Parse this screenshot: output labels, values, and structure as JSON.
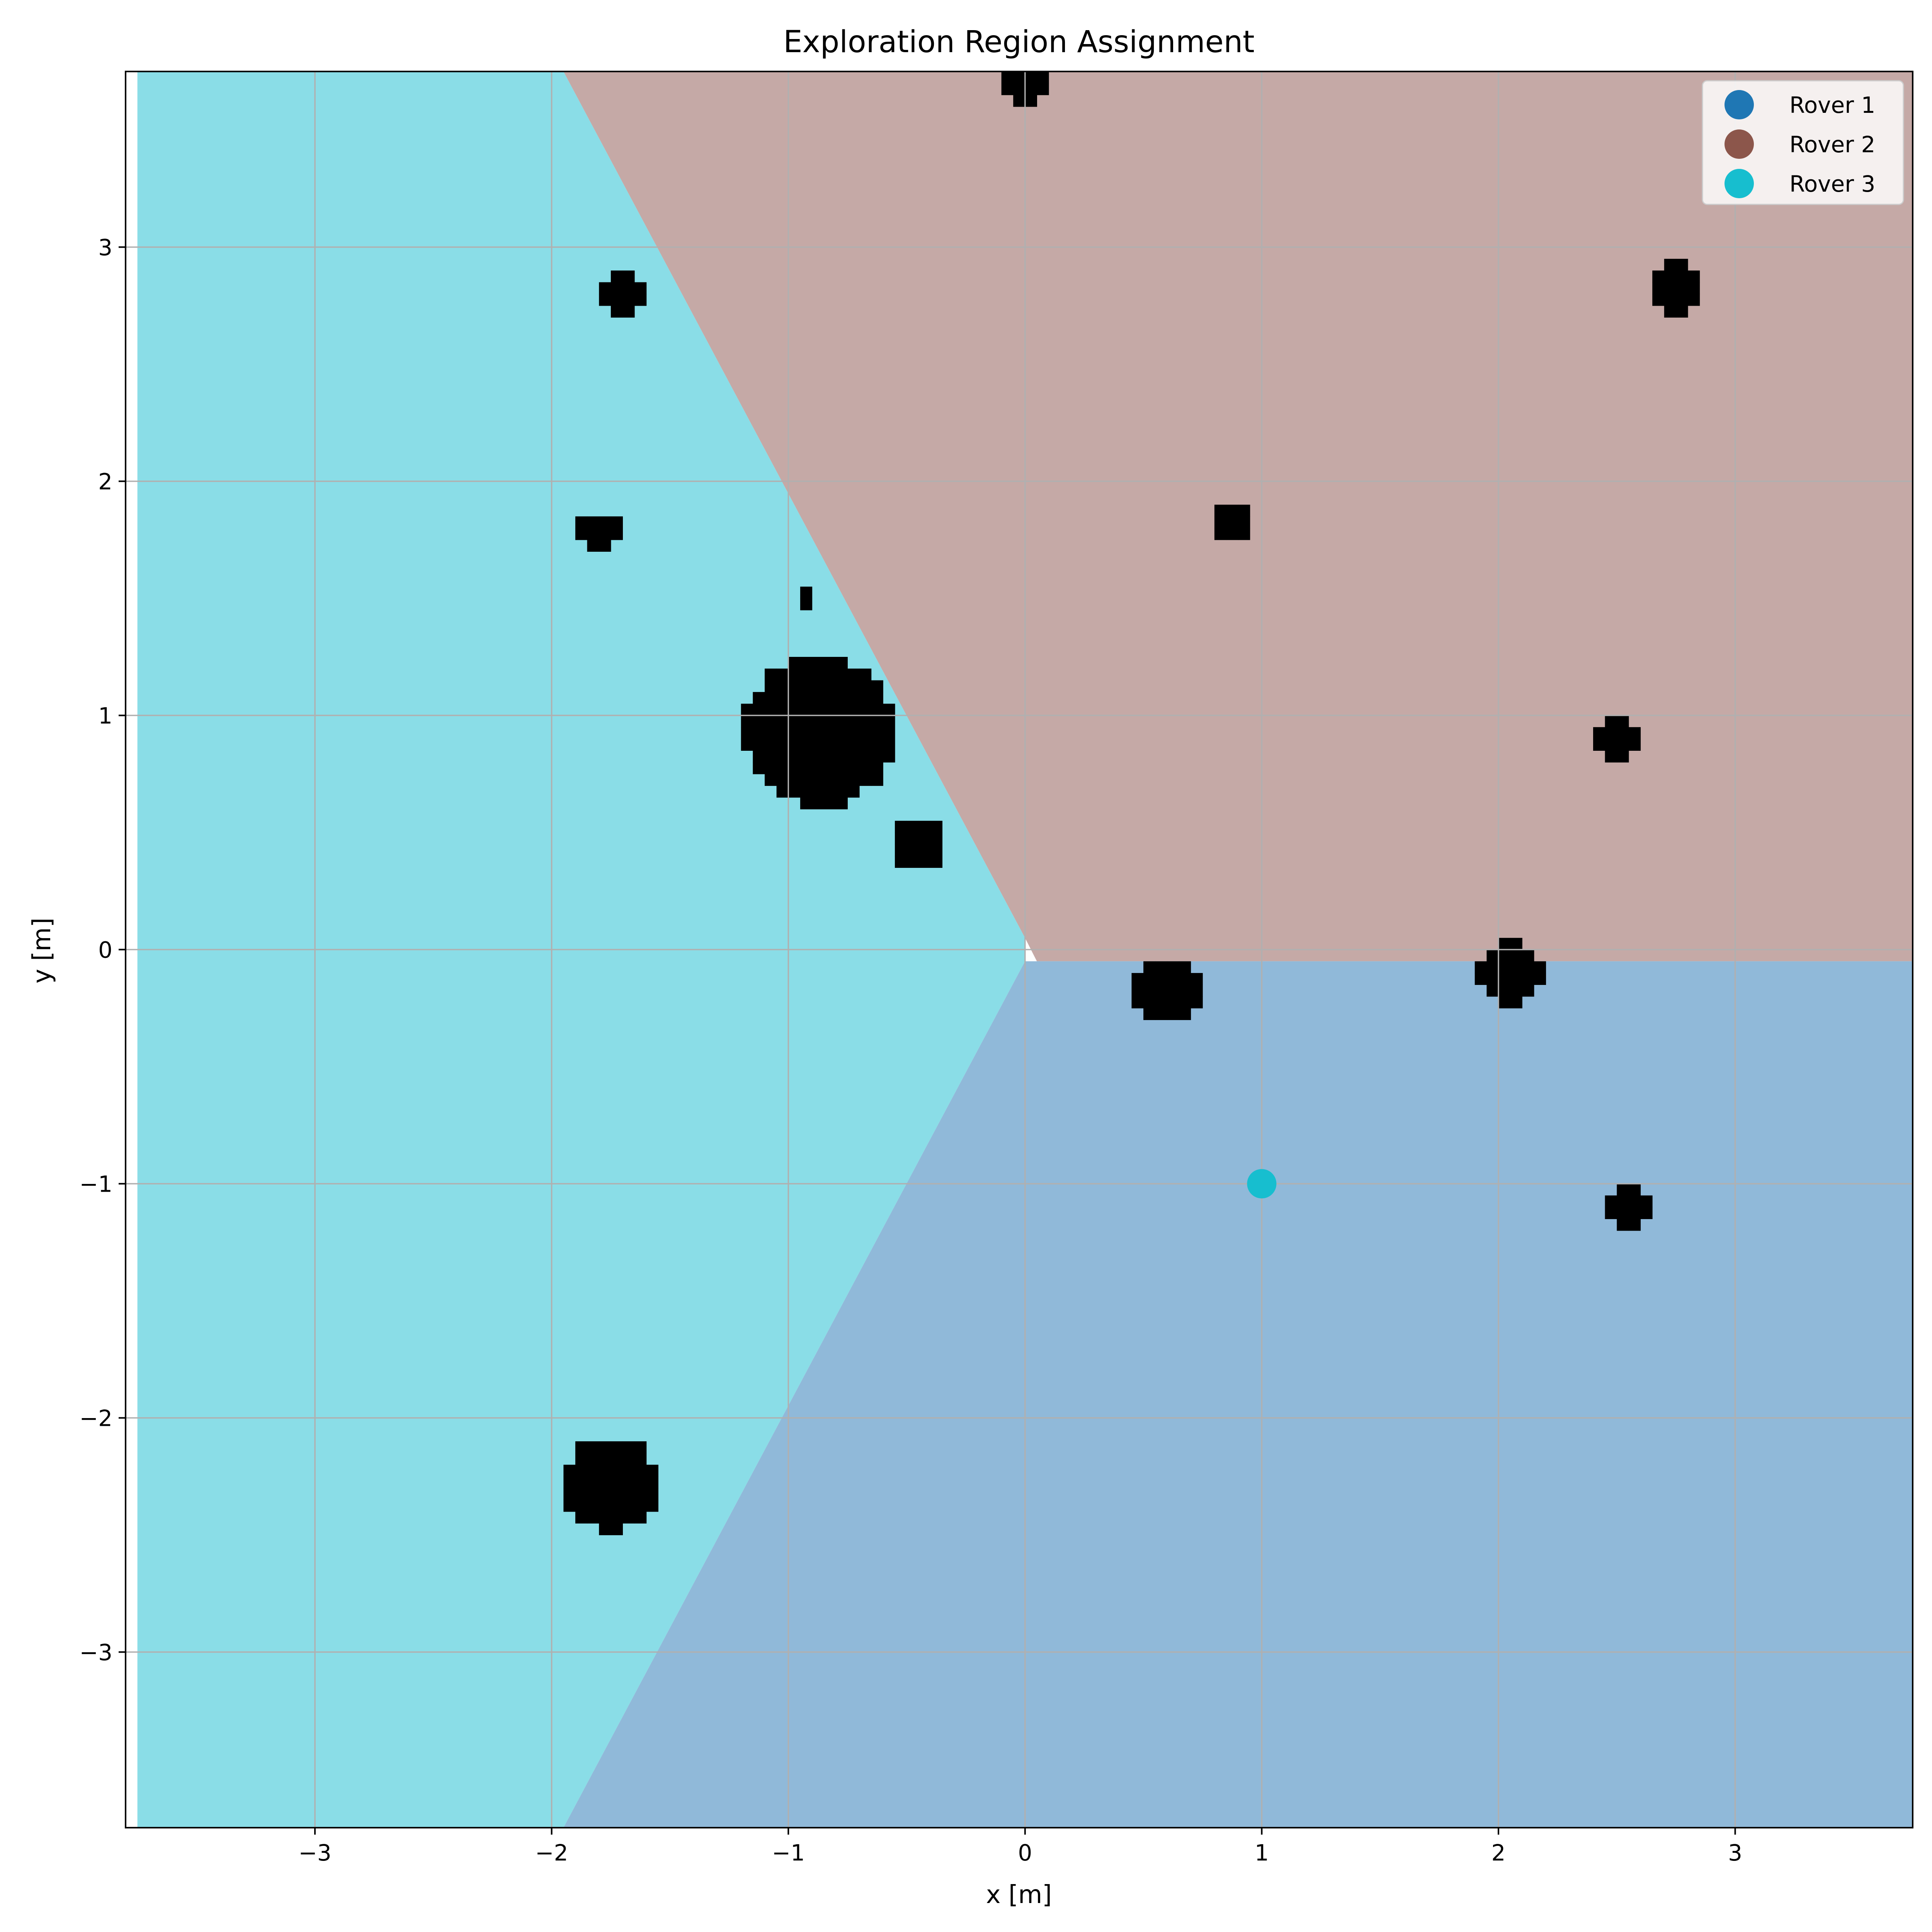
{
  "chart_data": {
    "type": "heatmap",
    "title": "Exploration Region Assignment",
    "xlabel": "x [m]",
    "ylabel": "y [m]",
    "xlim": [
      -3.8,
      3.75
    ],
    "ylim": [
      -3.75,
      3.75
    ],
    "grid": true,
    "legend_placement": "top-right",
    "x_ticks": [
      -3,
      -2,
      -1,
      0,
      1,
      2,
      3
    ],
    "y_ticks": [
      -3,
      -2,
      -1,
      0,
      1,
      2,
      3
    ],
    "x_tick_labels": [
      "−3",
      "−2",
      "−1",
      "0",
      "1",
      "2",
      "3"
    ],
    "y_tick_labels": [
      "−3",
      "−2",
      "−1",
      "0",
      "1",
      "2",
      "3"
    ],
    "region_colors": {
      "Rover 1": "#90b9d9",
      "Rover 2": "#c5a9a6",
      "Rover 3": "#8adde7"
    },
    "obstacle_color": "#000000",
    "regions": [
      {
        "name": "Rover 3",
        "polygon": [
          [
            -3.75,
            -3.75
          ],
          [
            -3.75,
            3.75
          ],
          [
            -1.95,
            3.75
          ],
          [
            0.0,
            0.05
          ],
          [
            0.0,
            -0.05
          ],
          [
            -1.95,
            -3.75
          ]
        ]
      },
      {
        "name": "Rover 2",
        "polygon": [
          [
            -1.95,
            3.75
          ],
          [
            3.75,
            3.75
          ],
          [
            3.75,
            -0.05
          ],
          [
            0.05,
            -0.05
          ],
          [
            0.0,
            0.05
          ]
        ]
      },
      {
        "name": "Rover 1",
        "polygon": [
          [
            -1.95,
            -3.75
          ],
          [
            3.75,
            -3.75
          ],
          [
            3.75,
            -0.05
          ],
          [
            0.0,
            -0.05
          ]
        ]
      }
    ],
    "obstacles": [
      {
        "x": -0.87,
        "y": 0.93,
        "r": 0.32
      },
      {
        "x": -1.75,
        "y": -2.28,
        "r": 0.2
      },
      {
        "x": 0.6,
        "y": -0.18,
        "r": 0.14
      },
      {
        "x": 2.05,
        "y": -0.1,
        "r": 0.14
      },
      {
        "x": 2.75,
        "y": 2.83,
        "r": 0.12
      },
      {
        "x": -1.7,
        "y": 2.8,
        "r": 0.1
      },
      {
        "x": -0.45,
        "y": 0.45,
        "r": 0.11
      },
      {
        "x": -1.8,
        "y": 1.78,
        "r": 0.09
      },
      {
        "x": 0.87,
        "y": 1.83,
        "r": 0.08
      },
      {
        "x": 2.5,
        "y": 0.9,
        "r": 0.08
      },
      {
        "x": 2.55,
        "y": -1.1,
        "r": 0.09
      },
      {
        "x": 0.0,
        "y": 3.68,
        "r": 0.09
      },
      {
        "x": -0.92,
        "y": 1.5,
        "r": 0.05
      }
    ],
    "legend": [
      {
        "label": "Rover 1",
        "color": "#1f77b4"
      },
      {
        "label": "Rover 2",
        "color": "#8c564b"
      },
      {
        "label": "Rover 3",
        "color": "#17becf"
      }
    ],
    "rover_points": [
      {
        "name": "Rover 3",
        "x": 1.0,
        "y": -1.0,
        "color": "#17becf"
      }
    ]
  }
}
